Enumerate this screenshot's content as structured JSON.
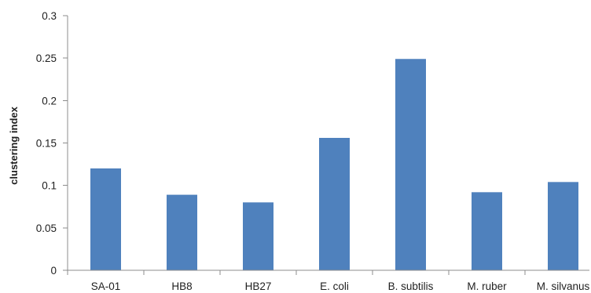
{
  "chart_data": {
    "type": "bar",
    "title": "",
    "xlabel": "",
    "ylabel": "clustering index",
    "categories": [
      "SA-01",
      "HB8",
      "HB27",
      "E. coli",
      "B. subtilis",
      "M. ruber",
      "M. silvanus"
    ],
    "values": [
      0.12,
      0.089,
      0.08,
      0.156,
      0.249,
      0.092,
      0.104
    ],
    "ylim": [
      0,
      0.3
    ],
    "yticks": [
      "0",
      "0.05",
      "0.1",
      "0.15",
      "0.2",
      "0.25",
      "0.3"
    ],
    "grid": false,
    "legend": "none",
    "colors": {
      "bar": "#4f81bd",
      "axis": "#8c8c8c",
      "text": "#1f1f1f"
    }
  }
}
